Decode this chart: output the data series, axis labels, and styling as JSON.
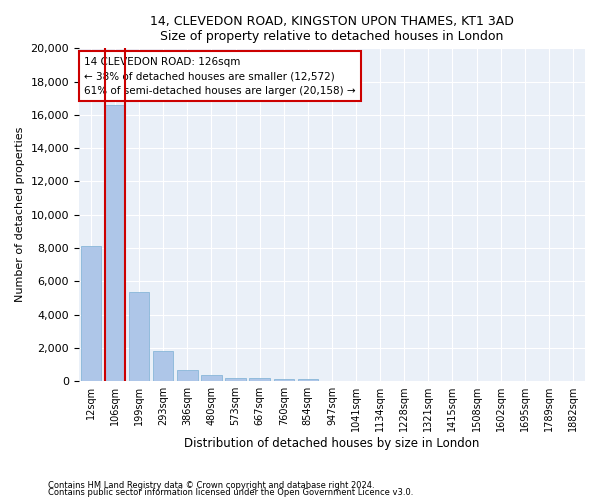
{
  "title1": "14, CLEVEDON ROAD, KINGSTON UPON THAMES, KT1 3AD",
  "title2": "Size of property relative to detached houses in London",
  "xlabel": "Distribution of detached houses by size in London",
  "ylabel": "Number of detached properties",
  "categories": [
    "12sqm",
    "106sqm",
    "199sqm",
    "293sqm",
    "386sqm",
    "480sqm",
    "573sqm",
    "667sqm",
    "760sqm",
    "854sqm",
    "947sqm",
    "1041sqm",
    "1134sqm",
    "1228sqm",
    "1321sqm",
    "1415sqm",
    "1508sqm",
    "1602sqm",
    "1695sqm",
    "1789sqm",
    "1882sqm"
  ],
  "values": [
    8100,
    16600,
    5350,
    1820,
    660,
    340,
    185,
    160,
    150,
    130,
    0,
    0,
    0,
    0,
    0,
    0,
    0,
    0,
    0,
    0,
    0
  ],
  "bar_color": "#aec6e8",
  "bar_edge_color": "#7bafd4",
  "highlight_bar_index": 1,
  "highlight_line_color": "#cc0000",
  "annotation_text": "14 CLEVEDON ROAD: 126sqm\n← 38% of detached houses are smaller (12,572)\n61% of semi-detached houses are larger (20,158) →",
  "annotation_box_color": "#cc0000",
  "annotation_bg": "white",
  "ylim": [
    0,
    20000
  ],
  "yticks": [
    0,
    2000,
    4000,
    6000,
    8000,
    10000,
    12000,
    14000,
    16000,
    18000,
    20000
  ],
  "footer1": "Contains HM Land Registry data © Crown copyright and database right 2024.",
  "footer2": "Contains public sector information licensed under the Open Government Licence v3.0.",
  "plot_bg": "#eaf0f8"
}
